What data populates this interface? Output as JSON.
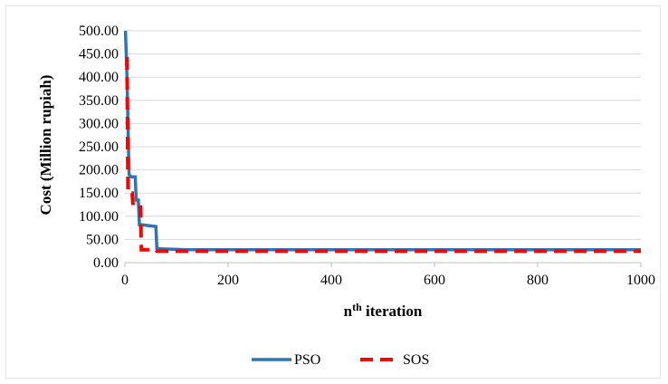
{
  "chart_data": {
    "type": "line",
    "xlabel": "nth iteration",
    "xlabel_base": "n",
    "xlabel_sup": "th",
    "xlabel_rest": " iteration",
    "ylabel": "Cost (Million rupiah)",
    "xlim": [
      0,
      1000
    ],
    "ylim": [
      0,
      500
    ],
    "x_ticks": [
      "0",
      "200",
      "400",
      "600",
      "800",
      "1000"
    ],
    "y_ticks": [
      "0.00",
      "50.00",
      "100.00",
      "150.00",
      "200.00",
      "250.00",
      "300.00",
      "350.00",
      "400.00",
      "450.00",
      "500.00"
    ],
    "grid": "horizontal",
    "legend_position": "bottom",
    "series": [
      {
        "name": "PSO",
        "color": "#2E75B6",
        "style": "solid",
        "x": [
          1,
          4,
          8,
          12,
          20,
          22,
          26,
          28,
          30,
          60,
          62,
          120,
          1000
        ],
        "y": [
          500,
          400,
          190,
          185,
          185,
          135,
          135,
          82,
          82,
          78,
          30,
          28,
          28
        ]
      },
      {
        "name": "SOS",
        "color": "#FF0000",
        "style": "dashed",
        "x": [
          1,
          4,
          6,
          10,
          14,
          16,
          30,
          32,
          60,
          62,
          100,
          1000
        ],
        "y": [
          440,
          440,
          150,
          150,
          150,
          120,
          120,
          28,
          28,
          25,
          25,
          25
        ]
      }
    ]
  }
}
